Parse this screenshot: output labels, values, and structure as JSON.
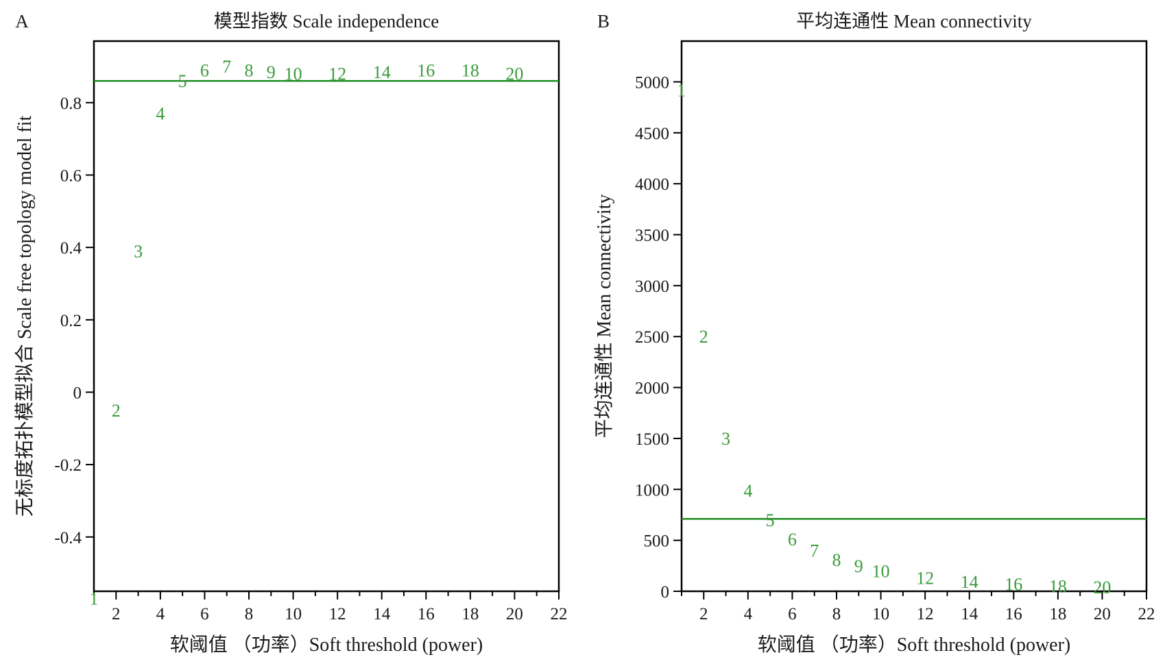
{
  "chart_data": [
    {
      "panel_label": "A",
      "type": "scatter",
      "title": "模型指数 Scale independence",
      "xlabel": "软阈值 （功率）Soft threshold (power)",
      "ylabel": "无标度拓扑模型拟合 Scale free topology model fit",
      "xlim": [
        1,
        22
      ],
      "ylim": [
        -0.55,
        0.97
      ],
      "xticks": [
        2,
        4,
        6,
        8,
        10,
        12,
        14,
        16,
        18,
        20,
        22
      ],
      "yticks": [
        -0.4,
        -0.2,
        0,
        0.2,
        0.4,
        0.6,
        0.8
      ],
      "ytick_labels": [
        "-0.4",
        "-0.2",
        "0",
        "0.2",
        "0.4",
        "0.6",
        "0.8"
      ],
      "hline": 0.86,
      "color": "#3b9a3b",
      "line_color": "#1e8a1e",
      "points": [
        {
          "x": 1,
          "y": -0.57,
          "label": "1"
        },
        {
          "x": 2,
          "y": -0.05,
          "label": "2"
        },
        {
          "x": 3,
          "y": 0.39,
          "label": "3"
        },
        {
          "x": 4,
          "y": 0.77,
          "label": "4"
        },
        {
          "x": 5,
          "y": 0.86,
          "label": "5"
        },
        {
          "x": 6,
          "y": 0.89,
          "label": "6"
        },
        {
          "x": 7,
          "y": 0.9,
          "label": "7"
        },
        {
          "x": 8,
          "y": 0.89,
          "label": "8"
        },
        {
          "x": 9,
          "y": 0.885,
          "label": "9"
        },
        {
          "x": 10,
          "y": 0.88,
          "label": "10"
        },
        {
          "x": 12,
          "y": 0.88,
          "label": "12"
        },
        {
          "x": 14,
          "y": 0.885,
          "label": "14"
        },
        {
          "x": 16,
          "y": 0.89,
          "label": "16"
        },
        {
          "x": 18,
          "y": 0.89,
          "label": "18"
        },
        {
          "x": 20,
          "y": 0.88,
          "label": "20"
        }
      ]
    },
    {
      "panel_label": "B",
      "type": "scatter",
      "title": "平均连通性 Mean connectivity",
      "xlabel": "软阈值 （功率）Soft threshold (power)",
      "ylabel": "平均连通性 Mean connectivity",
      "xlim": [
        1,
        22
      ],
      "ylim": [
        0,
        5400
      ],
      "xticks": [
        2,
        4,
        6,
        8,
        10,
        12,
        14,
        16,
        18,
        20,
        22
      ],
      "yticks": [
        0,
        500,
        1000,
        1500,
        2000,
        2500,
        3000,
        3500,
        4000,
        4500,
        5000
      ],
      "ytick_labels": [
        "0",
        "500",
        "1000",
        "1500",
        "2000",
        "2500",
        "3000",
        "3500",
        "4000",
        "4500",
        "5000"
      ],
      "hline": 710,
      "color": "#3b9a3b",
      "line_color": "#1e8a1e",
      "points": [
        {
          "x": 1,
          "y": 4920,
          "label": "1"
        },
        {
          "x": 2,
          "y": 2500,
          "label": "2"
        },
        {
          "x": 3,
          "y": 1500,
          "label": "3"
        },
        {
          "x": 4,
          "y": 990,
          "label": "4"
        },
        {
          "x": 5,
          "y": 700,
          "label": "5"
        },
        {
          "x": 6,
          "y": 510,
          "label": "6"
        },
        {
          "x": 7,
          "y": 400,
          "label": "7"
        },
        {
          "x": 8,
          "y": 310,
          "label": "8"
        },
        {
          "x": 9,
          "y": 250,
          "label": "9"
        },
        {
          "x": 10,
          "y": 200,
          "label": "10"
        },
        {
          "x": 12,
          "y": 130,
          "label": "12"
        },
        {
          "x": 14,
          "y": 95,
          "label": "14"
        },
        {
          "x": 16,
          "y": 70,
          "label": "16"
        },
        {
          "x": 18,
          "y": 50,
          "label": "18"
        },
        {
          "x": 20,
          "y": 40,
          "label": "20"
        }
      ]
    }
  ]
}
